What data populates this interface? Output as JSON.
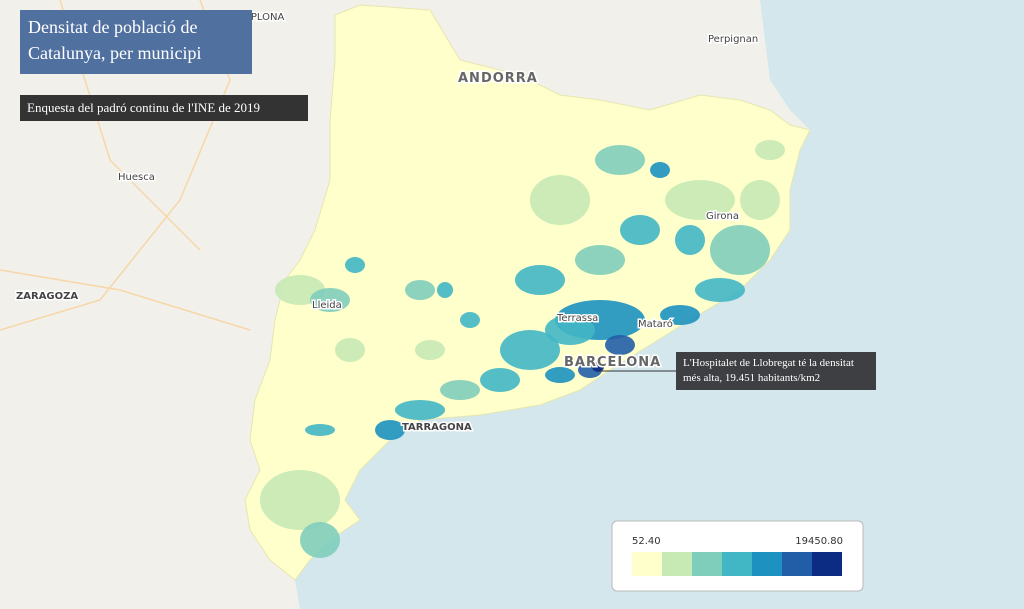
{
  "title": "Densitat de població de Catalunya, per municipi",
  "subtitle": "Enquesta del padró continu de l'INE de 2019",
  "annotation": "L'Hospitalet de Llobregat té la densitat més alta, 19.451 habitants/km2",
  "legend": {
    "min": "52.40",
    "max": "19450.80",
    "colors": [
      "#ffffcc",
      "#c7e9b4",
      "#7fcdbb",
      "#41b6c4",
      "#1d91c0",
      "#225ea8",
      "#0c2c84"
    ]
  },
  "places": [
    "PAMPLONA",
    "ANDORRA",
    "Perpignan",
    "Huesca",
    "ZARAGOZA",
    "Lleida",
    "Girona",
    "Terrassa",
    "Mataró",
    "BARCELONA",
    "TARRAGONA"
  ]
}
